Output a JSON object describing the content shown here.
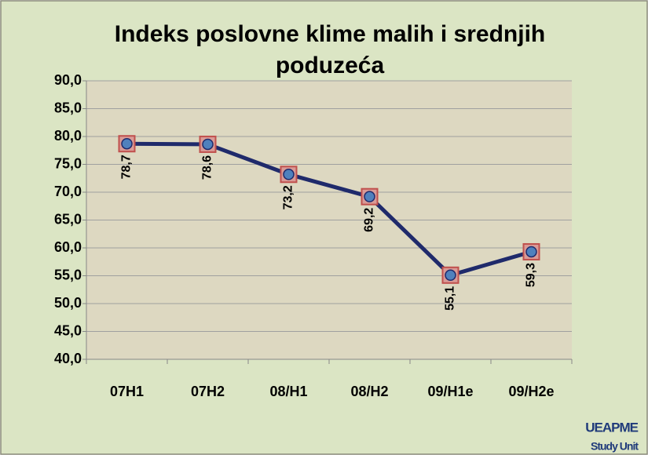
{
  "chart_data": {
    "type": "line",
    "title": [
      "Indeks poslovne klime malih i srednjih",
      "poduzeća"
    ],
    "categories": [
      "07H1",
      "07H2",
      "08/H1",
      "08/H2",
      "09/H1e",
      "09/H2e"
    ],
    "series": [
      {
        "name": null,
        "color": "#1f2a6b",
        "values": [
          78.7,
          78.6,
          73.2,
          69.2,
          55.1,
          59.3
        ],
        "value_labels": [
          "78,7",
          "78,6",
          "73,2",
          "69,2",
          "55,1",
          "59,3"
        ]
      }
    ],
    "ylim": [
      40,
      90
    ],
    "yticks": [
      {
        "value": 40,
        "label": "40,0"
      },
      {
        "value": 45,
        "label": "45,0"
      },
      {
        "value": 50,
        "label": "50,0"
      },
      {
        "value": 55,
        "label": "55,0"
      },
      {
        "value": 60,
        "label": "60,0"
      },
      {
        "value": 65,
        "label": "65,0"
      },
      {
        "value": 70,
        "label": "70,0"
      },
      {
        "value": 75,
        "label": "75,0"
      },
      {
        "value": 80,
        "label": "80,0"
      },
      {
        "value": 85,
        "label": "85,0"
      },
      {
        "value": 90,
        "label": "90,0"
      }
    ],
    "grid": true,
    "logo": [
      "UEAPME",
      "Study Unit"
    ]
  }
}
